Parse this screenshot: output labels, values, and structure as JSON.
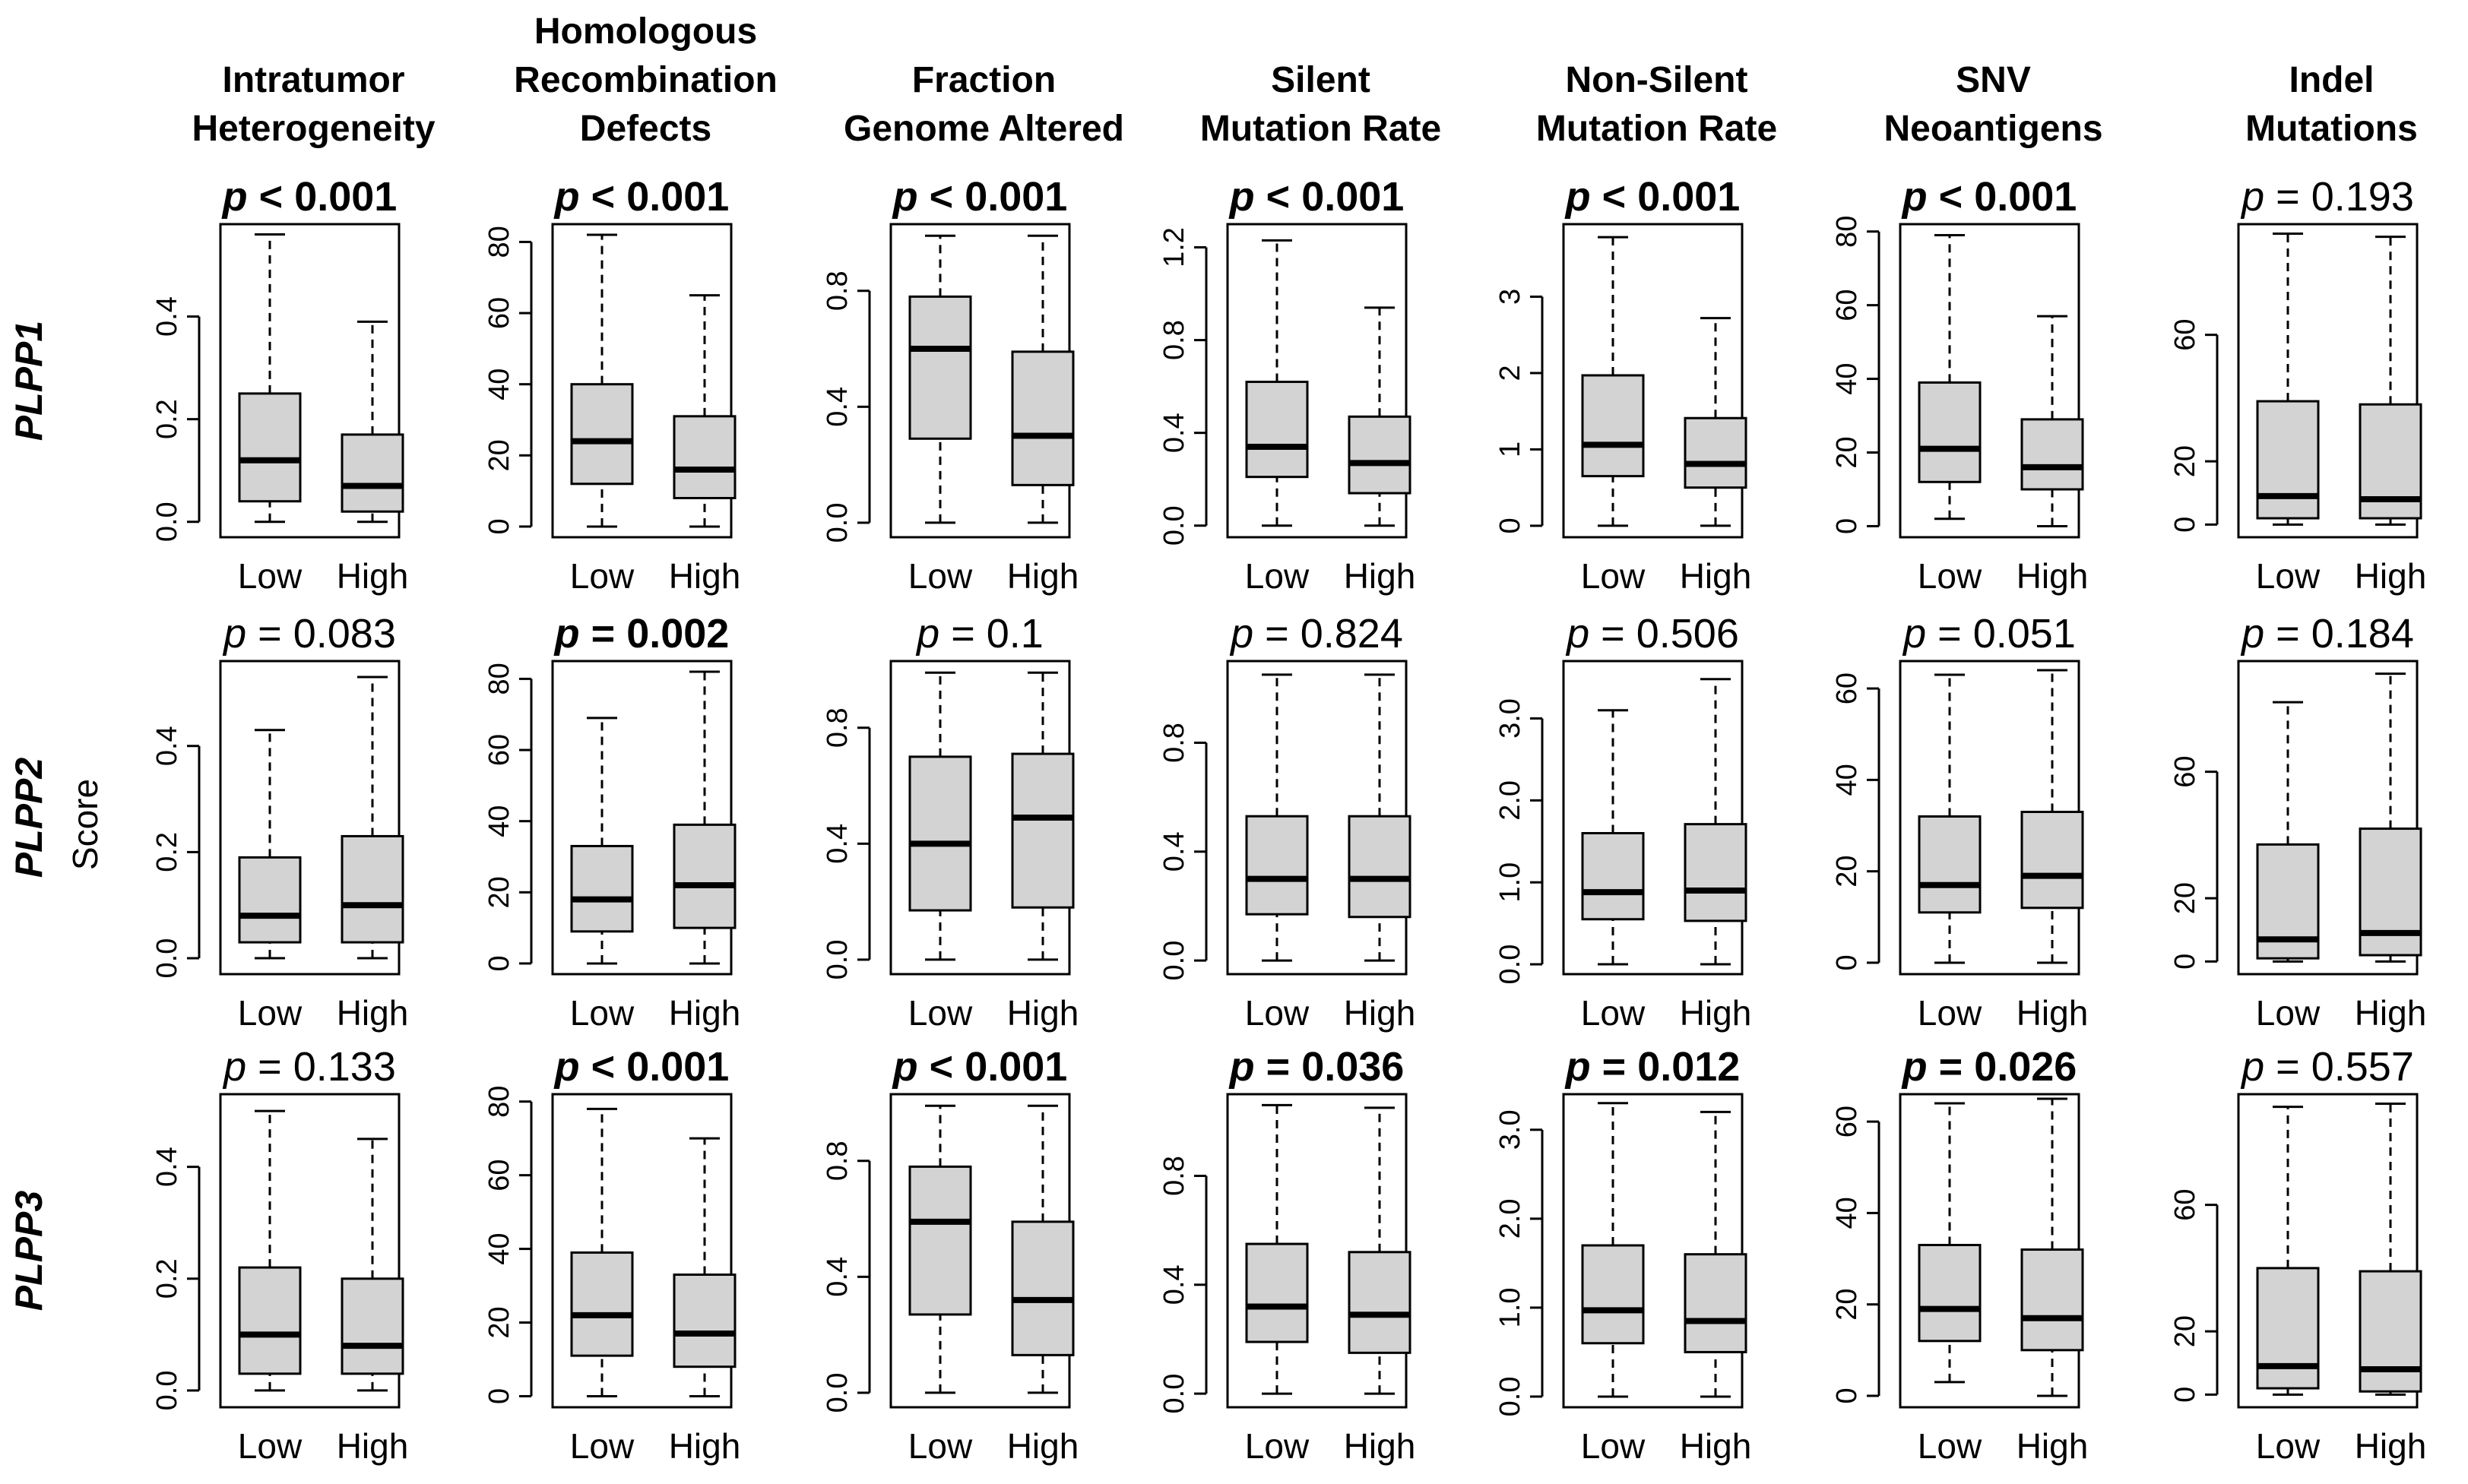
{
  "layout_labels": {
    "y_axis": "Score"
  },
  "styling": {
    "box_fill": "#d3d3d3",
    "line_color": "#000000",
    "background": "#ffffff"
  },
  "chart_data": {
    "type": "boxplot",
    "panel_grid": {
      "rows": [
        "PLPP1",
        "PLPP2",
        "PLPP3"
      ],
      "columns": [
        "Intratumor Heterogeneity",
        "Homologous Recombination Defects",
        "Fraction Genome Altered",
        "Silent Mutation Rate",
        "Non-Silent Mutation Rate",
        "SNV Neoantigens",
        "Indel Mutations"
      ]
    },
    "column_titles": [
      [
        "Intratumor",
        "Heterogeneity"
      ],
      [
        "Homologous",
        "Recombination",
        "Defects"
      ],
      [
        "Fraction",
        "Genome Altered"
      ],
      [
        "Silent",
        "Mutation Rate"
      ],
      [
        "Non-Silent",
        "Mutation Rate"
      ],
      [
        "SNV",
        "Neoantigens"
      ],
      [
        "Indel",
        "Mutations"
      ]
    ],
    "ylabel": "Score",
    "groups": [
      "Low",
      "High"
    ],
    "panels": [
      {
        "row": "PLPP1",
        "column": "Intratumor Heterogeneity",
        "p": "< 0.001",
        "significant": true,
        "ylim": [
          -0.03,
          0.58
        ],
        "yticks": [
          "0.0",
          "0.2",
          "0.4"
        ],
        "boxes": [
          {
            "group": "Low",
            "min": 0.0,
            "q1": 0.04,
            "median": 0.12,
            "q3": 0.25,
            "max": 0.56
          },
          {
            "group": "High",
            "min": 0.0,
            "q1": 0.02,
            "median": 0.07,
            "q3": 0.17,
            "max": 0.39
          }
        ]
      },
      {
        "row": "PLPP1",
        "column": "Homologous Recombination Defects",
        "p": "< 0.001",
        "significant": true,
        "ylim": [
          -3,
          85
        ],
        "yticks": [
          "0",
          "20",
          "40",
          "60",
          "80"
        ],
        "boxes": [
          {
            "group": "Low",
            "min": 0,
            "q1": 12,
            "median": 24,
            "q3": 40,
            "max": 82
          },
          {
            "group": "High",
            "min": 0,
            "q1": 8,
            "median": 16,
            "q3": 31,
            "max": 65
          }
        ]
      },
      {
        "row": "PLPP1",
        "column": "Fraction Genome Altered",
        "p": "< 0.001",
        "significant": true,
        "ylim": [
          -0.05,
          1.03
        ],
        "yticks": [
          "0.0",
          "0.4",
          "0.8"
        ],
        "boxes": [
          {
            "group": "Low",
            "min": 0.0,
            "q1": 0.29,
            "median": 0.6,
            "q3": 0.78,
            "max": 0.99
          },
          {
            "group": "High",
            "min": 0.0,
            "q1": 0.13,
            "median": 0.3,
            "q3": 0.59,
            "max": 0.99
          }
        ]
      },
      {
        "row": "PLPP1",
        "column": "Silent Mutation Rate",
        "p": "< 0.001",
        "significant": true,
        "ylim": [
          -0.05,
          1.3
        ],
        "yticks": [
          "0.0",
          "0.4",
          "0.8",
          "1.2"
        ],
        "boxes": [
          {
            "group": "Low",
            "min": 0.0,
            "q1": 0.21,
            "median": 0.34,
            "q3": 0.62,
            "max": 1.23
          },
          {
            "group": "High",
            "min": 0.0,
            "q1": 0.14,
            "median": 0.27,
            "q3": 0.47,
            "max": 0.94
          }
        ]
      },
      {
        "row": "PLPP1",
        "column": "Non-Silent Mutation Rate",
        "p": "< 0.001",
        "significant": true,
        "ylim": [
          -0.15,
          3.95
        ],
        "yticks": [
          "0",
          "1",
          "2",
          "3"
        ],
        "boxes": [
          {
            "group": "Low",
            "min": 0.0,
            "q1": 0.65,
            "median": 1.06,
            "q3": 1.97,
            "max": 3.78
          },
          {
            "group": "High",
            "min": 0.0,
            "q1": 0.5,
            "median": 0.81,
            "q3": 1.41,
            "max": 2.72
          }
        ]
      },
      {
        "row": "PLPP1",
        "column": "SNV Neoantigens",
        "p": "< 0.001",
        "significant": true,
        "ylim": [
          -3,
          82
        ],
        "yticks": [
          "0",
          "20",
          "40",
          "60",
          "80"
        ],
        "boxes": [
          {
            "group": "Low",
            "min": 2,
            "q1": 12,
            "median": 21,
            "q3": 39,
            "max": 79
          },
          {
            "group": "High",
            "min": 0,
            "q1": 10,
            "median": 16,
            "q3": 29,
            "max": 57
          }
        ]
      },
      {
        "row": "PLPP1",
        "column": "Indel Mutations",
        "p": "= 0.193",
        "significant": false,
        "ylim": [
          -4,
          95
        ],
        "yticks": [
          "0",
          "20",
          "60"
        ],
        "boxes": [
          {
            "group": "Low",
            "min": 0,
            "q1": 2,
            "median": 9,
            "q3": 39,
            "max": 92
          },
          {
            "group": "High",
            "min": 0,
            "q1": 2,
            "median": 8,
            "q3": 38,
            "max": 91
          }
        ]
      },
      {
        "row": "PLPP2",
        "column": "Intratumor Heterogeneity",
        "p": "= 0.083",
        "significant": false,
        "ylim": [
          -0.03,
          0.56
        ],
        "yticks": [
          "0.0",
          "0.2",
          "0.4"
        ],
        "boxes": [
          {
            "group": "Low",
            "min": 0.0,
            "q1": 0.03,
            "median": 0.08,
            "q3": 0.19,
            "max": 0.43
          },
          {
            "group": "High",
            "min": 0.0,
            "q1": 0.03,
            "median": 0.1,
            "q3": 0.23,
            "max": 0.53
          }
        ]
      },
      {
        "row": "PLPP2",
        "column": "Homologous Recombination Defects",
        "p": "= 0.002",
        "significant": true,
        "ylim": [
          -3,
          85
        ],
        "yticks": [
          "0",
          "20",
          "40",
          "60",
          "80"
        ],
        "boxes": [
          {
            "group": "Low",
            "min": 0,
            "q1": 9,
            "median": 18,
            "q3": 33,
            "max": 69
          },
          {
            "group": "High",
            "min": 0,
            "q1": 10,
            "median": 22,
            "q3": 39,
            "max": 82
          }
        ]
      },
      {
        "row": "PLPP2",
        "column": "Fraction Genome Altered",
        "p": "= 0.1",
        "significant": false,
        "ylim": [
          -0.05,
          1.03
        ],
        "yticks": [
          "0.0",
          "0.4",
          "0.8"
        ],
        "boxes": [
          {
            "group": "Low",
            "min": 0.0,
            "q1": 0.17,
            "median": 0.4,
            "q3": 0.7,
            "max": 0.99
          },
          {
            "group": "High",
            "min": 0.0,
            "q1": 0.18,
            "median": 0.49,
            "q3": 0.71,
            "max": 0.99
          }
        ]
      },
      {
        "row": "PLPP2",
        "column": "Silent Mutation Rate",
        "p": "= 0.824",
        "significant": false,
        "ylim": [
          -0.05,
          1.1
        ],
        "yticks": [
          "0.0",
          "0.4",
          "0.8"
        ],
        "boxes": [
          {
            "group": "Low",
            "min": 0.0,
            "q1": 0.17,
            "median": 0.3,
            "q3": 0.53,
            "max": 1.05
          },
          {
            "group": "High",
            "min": 0.0,
            "q1": 0.16,
            "median": 0.3,
            "q3": 0.53,
            "max": 1.05
          }
        ]
      },
      {
        "row": "PLPP2",
        "column": "Non-Silent Mutation Rate",
        "p": "= 0.506",
        "significant": false,
        "ylim": [
          -0.12,
          3.7
        ],
        "yticks": [
          "0.0",
          "1.0",
          "2.0",
          "3.0"
        ],
        "boxes": [
          {
            "group": "Low",
            "min": 0.0,
            "q1": 0.55,
            "median": 0.88,
            "q3": 1.6,
            "max": 3.1
          },
          {
            "group": "High",
            "min": 0.0,
            "q1": 0.53,
            "median": 0.9,
            "q3": 1.71,
            "max": 3.48
          }
        ]
      },
      {
        "row": "PLPP2",
        "column": "SNV Neoantigens",
        "p": "= 0.051",
        "significant": false,
        "ylim": [
          -2.5,
          66
        ],
        "yticks": [
          "0",
          "20",
          "40",
          "60"
        ],
        "boxes": [
          {
            "group": "Low",
            "min": 0,
            "q1": 11,
            "median": 17,
            "q3": 32,
            "max": 63
          },
          {
            "group": "High",
            "min": 0,
            "q1": 12,
            "median": 19,
            "q3": 33,
            "max": 64
          }
        ]
      },
      {
        "row": "PLPP2",
        "column": "Indel Mutations",
        "p": "= 0.184",
        "significant": false,
        "ylim": [
          -4,
          95
        ],
        "yticks": [
          "0",
          "20",
          "60"
        ],
        "boxes": [
          {
            "group": "Low",
            "min": 0,
            "q1": 1,
            "median": 7,
            "q3": 37,
            "max": 82
          },
          {
            "group": "High",
            "min": 0,
            "q1": 2,
            "median": 9,
            "q3": 42,
            "max": 91
          }
        ]
      },
      {
        "row": "PLPP3",
        "column": "Intratumor Heterogeneity",
        "p": "= 0.133",
        "significant": false,
        "ylim": [
          -0.03,
          0.53
        ],
        "yticks": [
          "0.0",
          "0.2",
          "0.4"
        ],
        "boxes": [
          {
            "group": "Low",
            "min": 0.0,
            "q1": 0.03,
            "median": 0.1,
            "q3": 0.22,
            "max": 0.5
          },
          {
            "group": "High",
            "min": 0.0,
            "q1": 0.03,
            "median": 0.08,
            "q3": 0.2,
            "max": 0.45
          }
        ]
      },
      {
        "row": "PLPP3",
        "column": "Homologous Recombination Defects",
        "p": "< 0.001",
        "significant": true,
        "ylim": [
          -3,
          82
        ],
        "yticks": [
          "0",
          "20",
          "40",
          "60",
          "80"
        ],
        "boxes": [
          {
            "group": "Low",
            "min": 0,
            "q1": 11,
            "median": 22,
            "q3": 39,
            "max": 78
          },
          {
            "group": "High",
            "min": 0,
            "q1": 8,
            "median": 17,
            "q3": 33,
            "max": 70
          }
        ]
      },
      {
        "row": "PLPP3",
        "column": "Fraction Genome Altered",
        "p": "< 0.001",
        "significant": true,
        "ylim": [
          -0.05,
          1.03
        ],
        "yticks": [
          "0.0",
          "0.4",
          "0.8"
        ],
        "boxes": [
          {
            "group": "Low",
            "min": 0.0,
            "q1": 0.27,
            "median": 0.59,
            "q3": 0.78,
            "max": 0.99
          },
          {
            "group": "High",
            "min": 0.0,
            "q1": 0.13,
            "median": 0.32,
            "q3": 0.59,
            "max": 0.99
          }
        ]
      },
      {
        "row": "PLPP3",
        "column": "Silent Mutation Rate",
        "p": "= 0.036",
        "significant": true,
        "ylim": [
          -0.05,
          1.1
        ],
        "yticks": [
          "0.0",
          "0.4",
          "0.8"
        ],
        "boxes": [
          {
            "group": "Low",
            "min": 0.0,
            "q1": 0.19,
            "median": 0.32,
            "q3": 0.55,
            "max": 1.06
          },
          {
            "group": "High",
            "min": 0.0,
            "q1": 0.15,
            "median": 0.29,
            "q3": 0.52,
            "max": 1.05
          }
        ]
      },
      {
        "row": "PLPP3",
        "column": "Non-Silent Mutation Rate",
        "p": "= 0.012",
        "significant": true,
        "ylim": [
          -0.12,
          3.4
        ],
        "yticks": [
          "0.0",
          "1.0",
          "2.0",
          "3.0"
        ],
        "boxes": [
          {
            "group": "Low",
            "min": 0.0,
            "q1": 0.6,
            "median": 0.97,
            "q3": 1.7,
            "max": 3.3
          },
          {
            "group": "High",
            "min": 0.0,
            "q1": 0.5,
            "median": 0.85,
            "q3": 1.6,
            "max": 3.2
          }
        ]
      },
      {
        "row": "PLPP3",
        "column": "SNV Neoantigens",
        "p": "= 0.026",
        "significant": true,
        "ylim": [
          -2.5,
          66
        ],
        "yticks": [
          "0",
          "20",
          "40",
          "60"
        ],
        "boxes": [
          {
            "group": "Low",
            "min": 3,
            "q1": 12,
            "median": 19,
            "q3": 33,
            "max": 64
          },
          {
            "group": "High",
            "min": 0,
            "q1": 10,
            "median": 17,
            "q3": 32,
            "max": 65
          }
        ]
      },
      {
        "row": "PLPP3",
        "column": "Indel Mutations",
        "p": "= 0.557",
        "significant": false,
        "ylim": [
          -4,
          95
        ],
        "yticks": [
          "0",
          "20",
          "60"
        ],
        "boxes": [
          {
            "group": "Low",
            "min": 0,
            "q1": 2,
            "median": 9,
            "q3": 40,
            "max": 91
          },
          {
            "group": "High",
            "min": 0,
            "q1": 1,
            "median": 8,
            "q3": 39,
            "max": 92
          }
        ]
      }
    ]
  }
}
